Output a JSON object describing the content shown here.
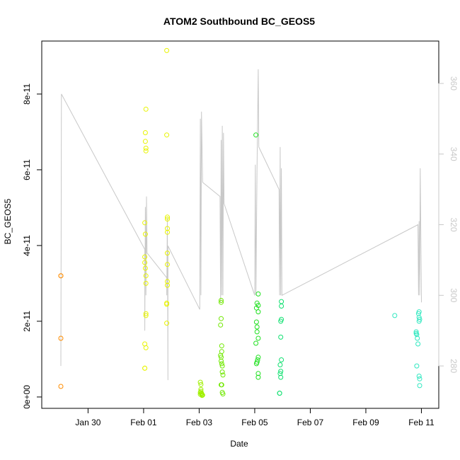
{
  "chart_data": {
    "type": "scatter",
    "title": "ATOM2 Southbound BC_GEOS5",
    "xlabel": "Date",
    "ylabel": "BC_GEOS5",
    "x_ticks": [
      "Jan 30",
      "Feb 01",
      "Feb 03",
      "Feb 05",
      "Feb 07",
      "Feb 09",
      "Feb 11"
    ],
    "x_tick_dates": [
      "2017-01-30",
      "2017-02-01",
      "2017-02-03",
      "2017-02-05",
      "2017-02-07",
      "2017-02-09",
      "2017-02-11"
    ],
    "xlim": [
      "2017-01-28T08:00",
      "2017-02-11T15:00"
    ],
    "y_ticks": [
      "0e+00",
      "2e-11",
      "4e-11",
      "6e-11",
      "8e-11"
    ],
    "y_tick_values": [
      0,
      2e-11,
      4e-11,
      6e-11,
      8e-11
    ],
    "ylim": [
      -3e-12,
      9.4e-11
    ],
    "y2_ticks": [
      "280",
      "300",
      "320",
      "340",
      "360"
    ],
    "y2_tick_values": [
      280,
      300,
      320,
      340,
      360
    ],
    "y2lim": [
      268,
      372
    ],
    "grid": false,
    "legend": "none",
    "line_color": "#c8c8c8",
    "series": [
      {
        "color": "#ff8c00",
        "points": [
          [
            "2017-01-29T00:30",
            3.2e-11
          ],
          [
            "2017-01-29T00:30",
            3.2e-11
          ],
          [
            "2017-01-29T00:30",
            1.55e-11
          ],
          [
            "2017-01-29T00:30",
            2.8e-12
          ]
        ]
      },
      {
        "color": "#e8f400",
        "points": [
          [
            "2017-02-01T01:00",
            4.6e-11
          ],
          [
            "2017-02-01T01:00",
            3.7e-11
          ],
          [
            "2017-02-01T01:00",
            3.55e-11
          ],
          [
            "2017-02-01T01:00",
            1.4e-11
          ],
          [
            "2017-02-01T01:00",
            7.6e-12
          ],
          [
            "2017-02-01T01:00",
            7.6e-12
          ],
          [
            "2017-02-01T01:30",
            6.98e-11
          ],
          [
            "2017-02-01T01:30",
            6.75e-11
          ],
          [
            "2017-02-01T02:00",
            7.6e-11
          ],
          [
            "2017-02-01T02:00",
            6.57e-11
          ],
          [
            "2017-02-01T02:00",
            6.5e-11
          ],
          [
            "2017-02-01T02:00",
            3.2e-11
          ],
          [
            "2017-02-01T02:00",
            3e-11
          ],
          [
            "2017-02-01T02:00",
            2.2e-11
          ],
          [
            "2017-02-01T02:00",
            2.15e-11
          ],
          [
            "2017-02-01T02:00",
            1.3e-11
          ],
          [
            "2017-02-01T01:30",
            4.3e-11
          ],
          [
            "2017-02-01T01:30",
            3.4e-11
          ],
          [
            "2017-02-01T20:00",
            9.15e-11
          ],
          [
            "2017-02-01T20:00",
            6.92e-11
          ],
          [
            "2017-02-01T20:30",
            4.75e-11
          ],
          [
            "2017-02-01T20:30",
            4.7e-11
          ],
          [
            "2017-02-01T20:30",
            4.45e-11
          ],
          [
            "2017-02-01T20:30",
            4.35e-11
          ],
          [
            "2017-02-01T20:30",
            3.8e-11
          ],
          [
            "2017-02-01T20:30",
            3.5e-11
          ],
          [
            "2017-02-01T20:30",
            3.05e-11
          ],
          [
            "2017-02-01T20:30",
            2.95e-11
          ],
          [
            "2017-02-01T20:00",
            2.48e-11
          ],
          [
            "2017-02-01T20:00",
            2.45e-11
          ],
          [
            "2017-02-01T20:00",
            1.95e-11
          ]
        ]
      },
      {
        "color": "#a0f000",
        "points": [
          [
            "2017-02-03T01:00",
            3.9e-12
          ],
          [
            "2017-02-03T01:30",
            3.3e-12
          ],
          [
            "2017-02-03T01:30",
            2e-12
          ],
          [
            "2017-02-03T01:30",
            1.5e-12
          ],
          [
            "2017-02-03T02:00",
            1e-12
          ],
          [
            "2017-02-03T02:00",
            8e-13
          ],
          [
            "2017-02-03T02:30",
            6e-13
          ],
          [
            "2017-02-03T02:30",
            4e-13
          ],
          [
            "2017-02-03T03:00",
            5e-13
          ],
          [
            "2017-02-03T01:00",
            1.2e-12
          ],
          [
            "2017-02-03T01:00",
            7e-13
          ]
        ]
      },
      {
        "color": "#70e800",
        "points": [
          [
            "2017-02-03T19:00",
            2.55e-11
          ],
          [
            "2017-02-03T19:00",
            2.5e-11
          ],
          [
            "2017-02-03T19:00",
            2.07e-11
          ],
          [
            "2017-02-03T18:30",
            1.9e-11
          ],
          [
            "2017-02-03T19:30",
            1.35e-11
          ],
          [
            "2017-02-03T19:30",
            1.2e-11
          ],
          [
            "2017-02-03T19:00",
            1.05e-11
          ],
          [
            "2017-02-03T19:00",
            9.5e-12
          ],
          [
            "2017-02-03T19:30",
            8.8e-12
          ],
          [
            "2017-02-03T20:00",
            8.2e-12
          ],
          [
            "2017-02-03T20:00",
            6.6e-12
          ],
          [
            "2017-02-03T20:30",
            5.8e-12
          ],
          [
            "2017-02-03T19:00",
            3.2e-12
          ],
          [
            "2017-02-03T19:30",
            3.2e-12
          ],
          [
            "2017-02-03T20:00",
            1.2e-12
          ],
          [
            "2017-02-03T20:30",
            8e-13
          ],
          [
            "2017-02-03T18:30",
            1.1e-11
          ]
        ]
      },
      {
        "color": "#20e020",
        "points": [
          [
            "2017-02-05T01:00",
            6.92e-11
          ],
          [
            "2017-02-05T03:00",
            2.72e-11
          ],
          [
            "2017-02-05T02:00",
            2.48e-11
          ],
          [
            "2017-02-05T03:00",
            2.42e-11
          ],
          [
            "2017-02-05T01:30",
            2.35e-11
          ],
          [
            "2017-02-05T03:00",
            2.25e-11
          ],
          [
            "2017-02-05T01:30",
            1.98e-11
          ],
          [
            "2017-02-05T02:00",
            1.85e-11
          ],
          [
            "2017-02-05T02:00",
            1.72e-11
          ],
          [
            "2017-02-05T03:00",
            1.55e-11
          ],
          [
            "2017-02-05T01:00",
            1.42e-11
          ],
          [
            "2017-02-05T03:00",
            1.05e-11
          ],
          [
            "2017-02-05T02:30",
            9.8e-12
          ],
          [
            "2017-02-05T02:00",
            9.2e-12
          ],
          [
            "2017-02-05T01:30",
            8.8e-12
          ],
          [
            "2017-02-05T03:00",
            6.2e-12
          ],
          [
            "2017-02-05T03:00",
            5.2e-12
          ]
        ]
      },
      {
        "color": "#10e070",
        "points": [
          [
            "2017-02-05T23:00",
            2.52e-11
          ],
          [
            "2017-02-05T23:00",
            2.4e-11
          ],
          [
            "2017-02-05T23:00",
            2.05e-11
          ],
          [
            "2017-02-05T22:30",
            2e-11
          ],
          [
            "2017-02-05T22:30",
            1.58e-11
          ],
          [
            "2017-02-05T23:00",
            9.8e-12
          ],
          [
            "2017-02-05T22:00",
            8.5e-12
          ],
          [
            "2017-02-05T22:30",
            6.8e-12
          ],
          [
            "2017-02-05T22:00",
            6.2e-12
          ],
          [
            "2017-02-05T22:30",
            5.2e-12
          ],
          [
            "2017-02-05T21:30",
            1e-12
          ],
          [
            "2017-02-05T21:30",
            1e-12
          ]
        ]
      },
      {
        "color": "#30e8c0",
        "points": [
          [
            "2017-02-10T01:00",
            2.15e-11
          ],
          [
            "2017-02-10T21:30",
            2.2e-11
          ],
          [
            "2017-02-10T22:00",
            2.25e-11
          ],
          [
            "2017-02-10T22:00",
            2.1e-11
          ],
          [
            "2017-02-10T22:30",
            2.05e-11
          ],
          [
            "2017-02-10T22:00",
            2e-11
          ],
          [
            "2017-02-10T19:30",
            1.72e-11
          ],
          [
            "2017-02-10T19:30",
            1.68e-11
          ],
          [
            "2017-02-10T20:00",
            1.65e-11
          ],
          [
            "2017-02-10T20:30",
            1.55e-11
          ],
          [
            "2017-02-10T21:00",
            1.4e-11
          ],
          [
            "2017-02-10T20:00",
            8.2e-12
          ],
          [
            "2017-02-10T22:00",
            5.5e-12
          ],
          [
            "2017-02-10T22:30",
            4.8e-12
          ],
          [
            "2017-02-10T22:30",
            3e-12
          ]
        ]
      }
    ],
    "line_series": {
      "name": "",
      "points": [
        [
          "2017-01-29T00:30",
          280
        ],
        [
          "2017-01-29T01:00",
          357
        ],
        [
          "2017-02-01T01:00",
          313
        ],
        [
          "2017-02-01T01:00",
          290
        ],
        [
          "2017-02-01T01:30",
          325
        ],
        [
          "2017-02-01T02:00",
          300
        ],
        [
          "2017-02-01T02:30",
          328
        ],
        [
          "2017-02-01T03:00",
          312
        ],
        [
          "2017-02-01T20:00",
          305
        ],
        [
          "2017-02-01T20:00",
          300
        ],
        [
          "2017-02-01T20:30",
          322
        ],
        [
          "2017-02-01T21:00",
          276
        ],
        [
          "2017-02-01T21:00",
          314
        ],
        [
          "2017-02-03T00:30",
          296
        ],
        [
          "2017-02-03T01:00",
          350
        ],
        [
          "2017-02-03T01:30",
          300
        ],
        [
          "2017-02-03T02:00",
          352
        ],
        [
          "2017-02-03T03:00",
          332
        ],
        [
          "2017-02-03T18:00",
          328
        ],
        [
          "2017-02-03T18:30",
          298
        ],
        [
          "2017-02-03T19:00",
          344
        ],
        [
          "2017-02-03T19:30",
          300
        ],
        [
          "2017-02-03T20:00",
          348
        ],
        [
          "2017-02-03T20:30",
          300
        ],
        [
          "2017-02-03T21:00",
          346
        ],
        [
          "2017-02-03T21:30",
          326
        ],
        [
          "2017-02-05T00:00",
          300
        ],
        [
          "2017-02-05T00:30",
          337
        ],
        [
          "2017-02-05T01:00",
          300
        ],
        [
          "2017-02-05T02:00",
          336
        ],
        [
          "2017-02-05T03:00",
          364
        ],
        [
          "2017-02-05T03:30",
          342
        ],
        [
          "2017-02-05T21:00",
          330
        ],
        [
          "2017-02-05T21:30",
          300
        ],
        [
          "2017-02-05T22:00",
          342
        ],
        [
          "2017-02-05T22:30",
          300
        ],
        [
          "2017-02-05T23:00",
          336
        ],
        [
          "2017-02-05T23:30",
          300
        ],
        [
          "2017-02-10T21:00",
          320
        ],
        [
          "2017-02-10T21:30",
          300
        ],
        [
          "2017-02-10T22:00",
          321
        ],
        [
          "2017-02-10T22:30",
          300
        ],
        [
          "2017-02-10T23:00",
          336
        ],
        [
          "2017-02-11T00:00",
          298
        ]
      ]
    }
  }
}
